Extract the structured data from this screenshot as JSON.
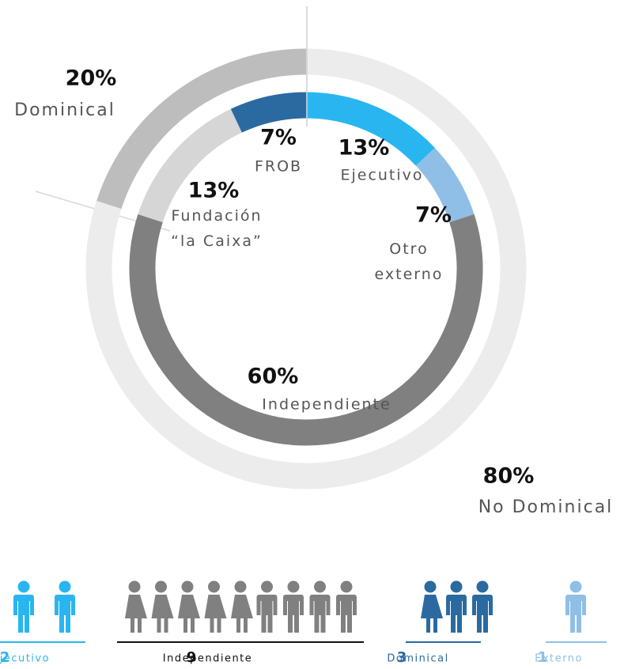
{
  "chart_data": [
    {
      "type": "donut",
      "ring": "outer",
      "categories": [
        "No Dominical",
        "Dominical"
      ],
      "values": [
        80,
        20
      ],
      "value_labels": [
        "80%",
        "20%"
      ],
      "colors": [
        "#ececec",
        "#bdbdbd"
      ]
    },
    {
      "type": "donut",
      "ring": "inner",
      "categories": [
        "Ejecutivo",
        "Otro externo",
        "Independiente",
        "Fundación “la Caixa”",
        "FROB"
      ],
      "values": [
        13,
        7,
        60,
        13,
        7
      ],
      "value_labels": [
        "13%",
        "7%",
        "60%",
        "13%",
        "7%"
      ],
      "colors": [
        "#29b6f0",
        "#8fbfe6",
        "#808080",
        "#d6d6d6",
        "#2a6aa0"
      ]
    },
    {
      "type": "pictogram",
      "categories": [
        "Ejecutivo",
        "Independiente",
        "Dominical",
        "Externo"
      ],
      "values": [
        2,
        9,
        3,
        1
      ],
      "colors": [
        "#29b6f0",
        "#808080",
        "#2a6aa0",
        "#8fbfe6"
      ]
    }
  ]
}
